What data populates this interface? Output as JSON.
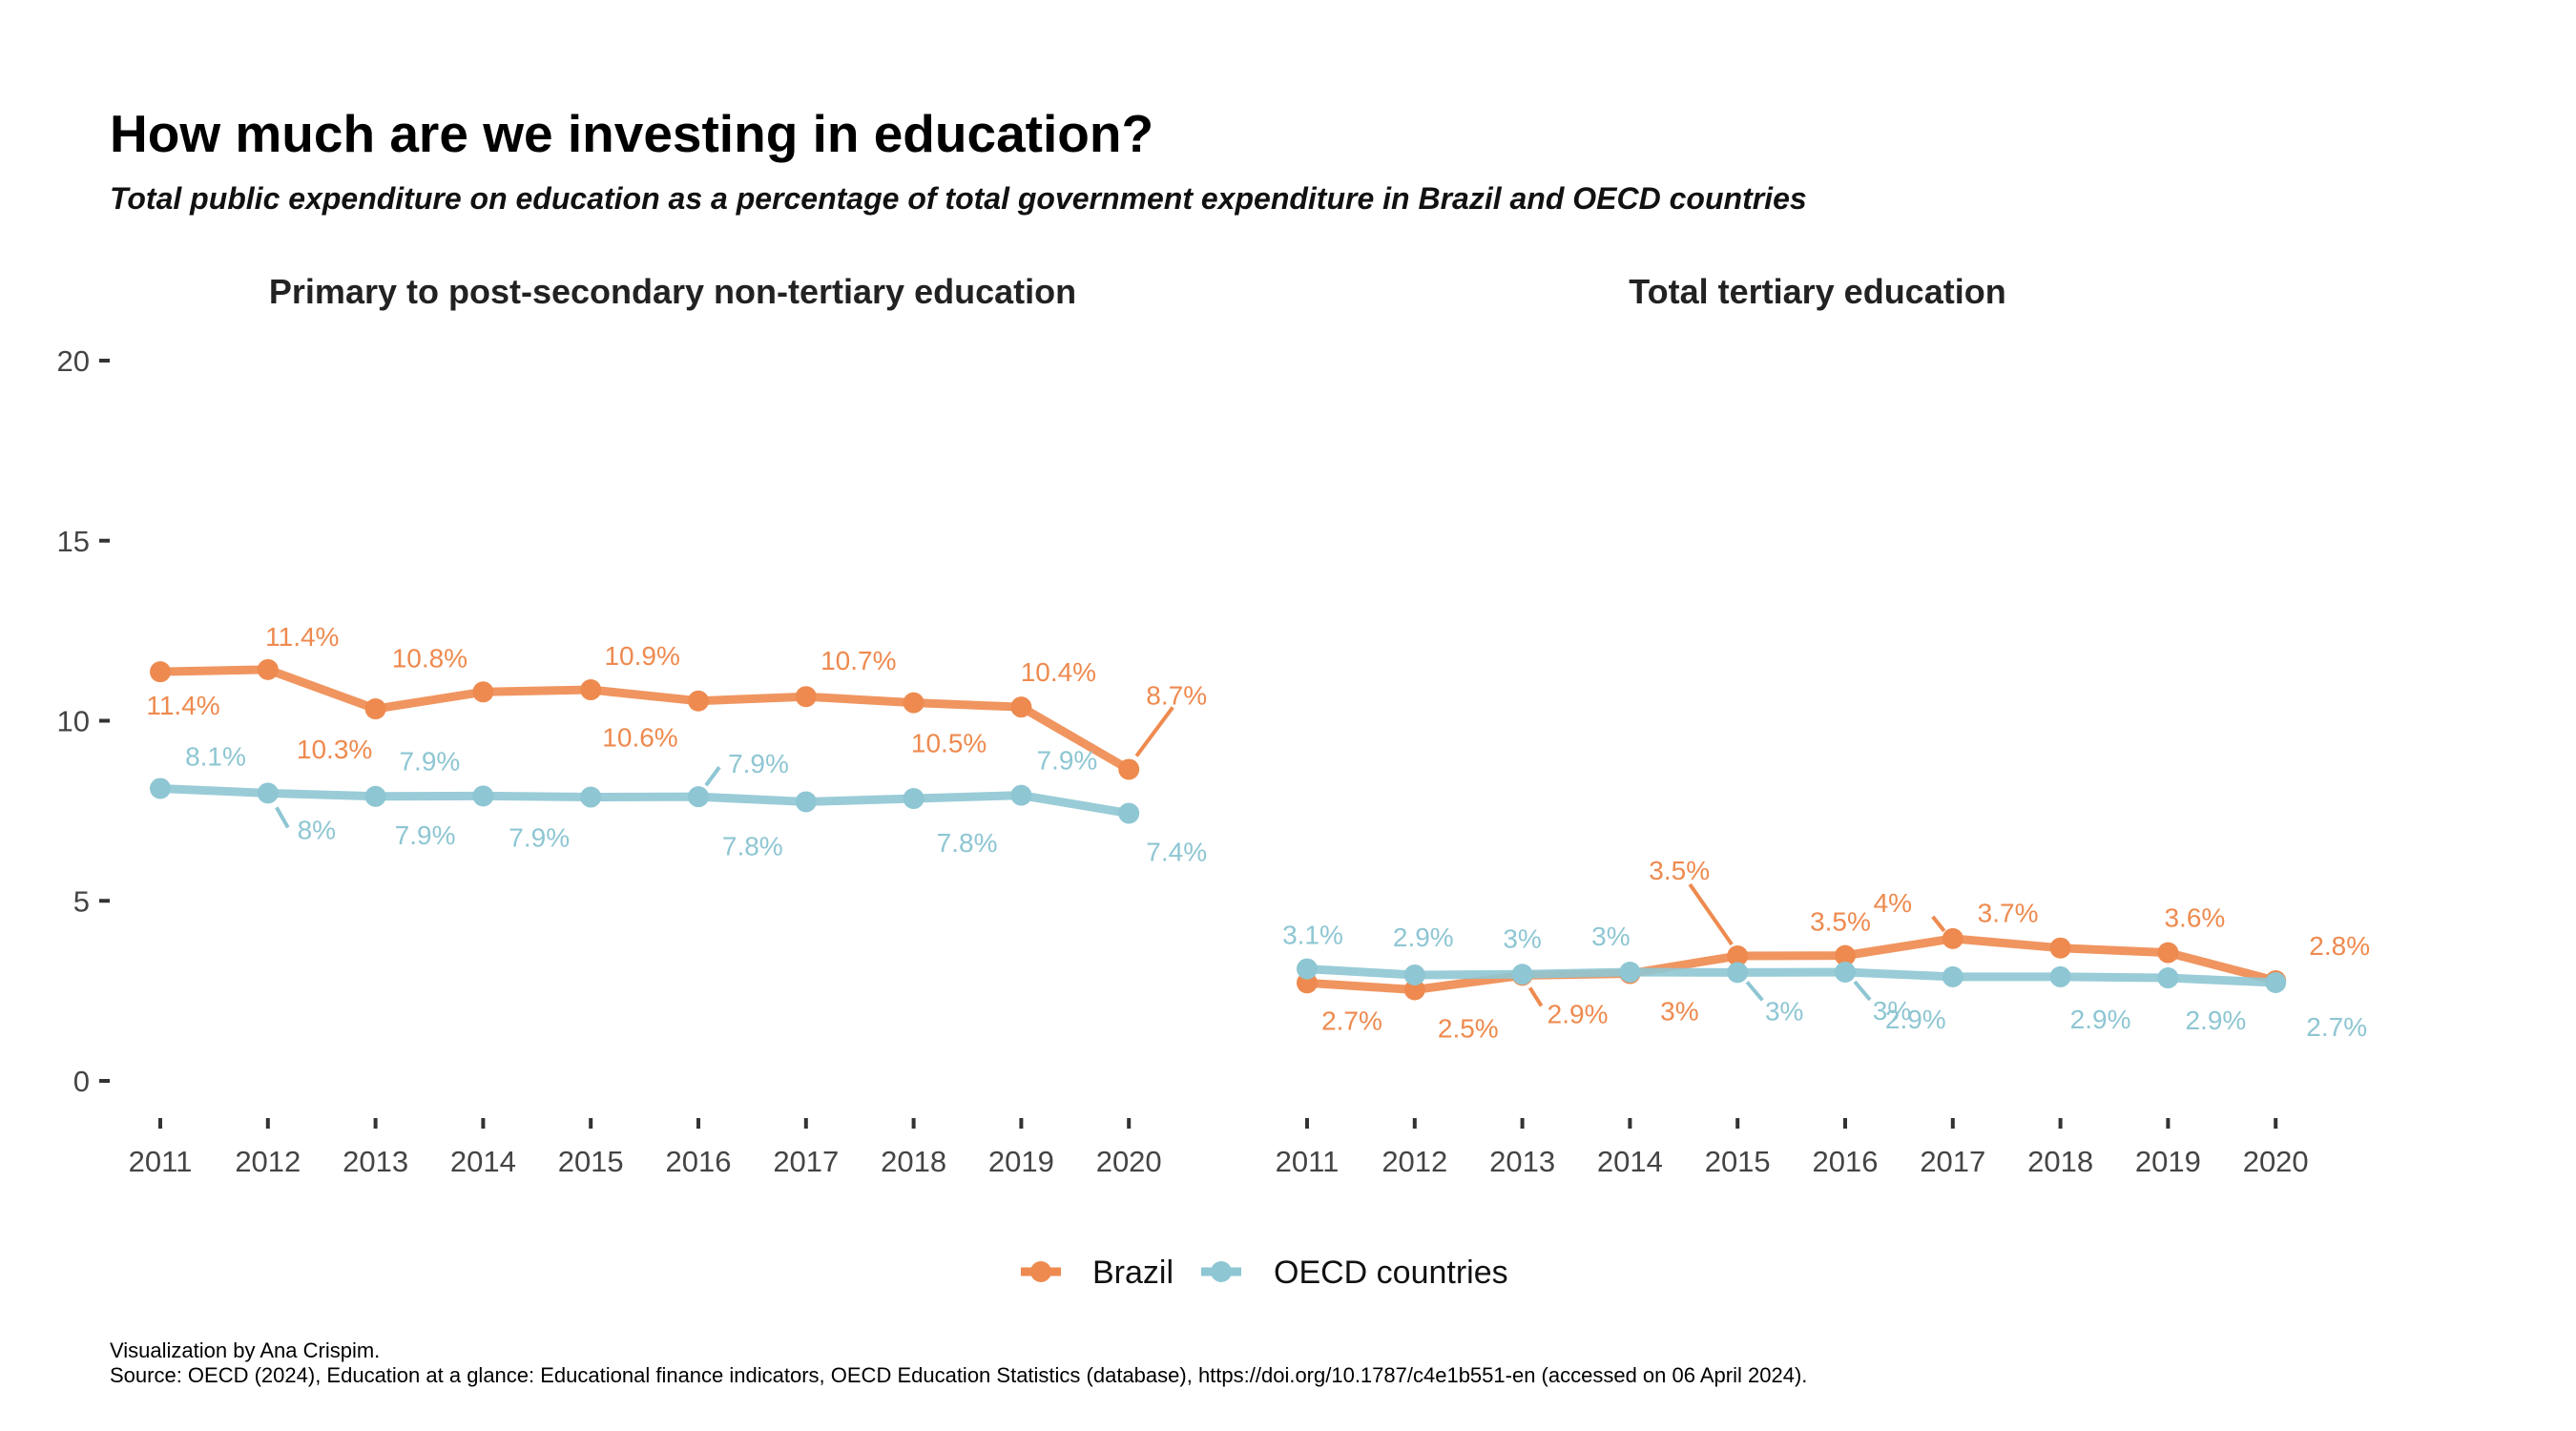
{
  "title": "How much are we investing in education?",
  "subtitle": "Total public expenditure on education as a percentage of total government expenditure in Brazil and OECD countries",
  "caption": {
    "line1": "Visualization by Ana Crispim.",
    "line2": "Source: OECD (2024), Education at a glance: Educational finance indicators, OECD Education Statistics (database), https://doi.org/10.1787/c4e1b551-en (accessed on 06 April 2024)."
  },
  "legend": [
    {
      "name": "Brazil",
      "color": "#EE8A4F"
    },
    {
      "name": "OECD countries",
      "color": "#8EC6D3"
    }
  ],
  "chart_data": [
    {
      "type": "line",
      "title": "Primary to post-secondary non-tertiary education",
      "x": [
        2011,
        2012,
        2013,
        2014,
        2015,
        2016,
        2017,
        2018,
        2019,
        2020
      ],
      "ylim": [
        0,
        20
      ],
      "yticks": [
        0,
        5,
        10,
        15,
        20
      ],
      "grid": false,
      "legend_position": "bottom",
      "series": [
        {
          "name": "Brazil",
          "color": "#EE8A4F",
          "values": [
            11.36,
            11.42,
            10.33,
            10.8,
            10.86,
            10.55,
            10.67,
            10.5,
            10.38,
            8.65
          ],
          "labels": [
            "11.4%",
            "11.4%",
            "10.3%",
            "10.8%",
            "10.9%",
            "10.6%",
            "10.7%",
            "10.5%",
            "10.4%",
            "8.7%"
          ]
        },
        {
          "name": "OECD countries",
          "color": "#8EC6D3",
          "values": [
            8.12,
            7.99,
            7.9,
            7.91,
            7.88,
            7.89,
            7.75,
            7.84,
            7.93,
            7.43
          ],
          "labels": [
            "8.1%",
            "8%",
            "7.9%",
            "7.9%",
            "7.9%",
            "7.9%",
            "7.8%",
            "7.8%",
            "7.9%",
            "7.4%"
          ]
        }
      ]
    },
    {
      "type": "line",
      "title": "Total tertiary education",
      "x": [
        2011,
        2012,
        2013,
        2014,
        2015,
        2016,
        2017,
        2018,
        2019,
        2020
      ],
      "ylim": [
        0,
        20
      ],
      "grid": false,
      "series": [
        {
          "name": "Brazil",
          "color": "#EE8A4F",
          "values": [
            2.72,
            2.53,
            2.93,
            2.98,
            3.47,
            3.48,
            3.95,
            3.69,
            3.56,
            2.78
          ],
          "labels": [
            "2.7%",
            "2.5%",
            "2.9%",
            "3%",
            "3.5%",
            "3.5%",
            "4%",
            "3.7%",
            "3.6%",
            "2.8%"
          ]
        },
        {
          "name": "OECD countries",
          "color": "#8EC6D3",
          "values": [
            3.11,
            2.94,
            2.96,
            3.02,
            3.01,
            3.02,
            2.89,
            2.89,
            2.86,
            2.73
          ],
          "labels": [
            "3.1%",
            "2.9%",
            "3%",
            "3%",
            "3%",
            "3%",
            "2.9%",
            "2.9%",
            "2.9%",
            "2.7%"
          ]
        }
      ]
    }
  ]
}
